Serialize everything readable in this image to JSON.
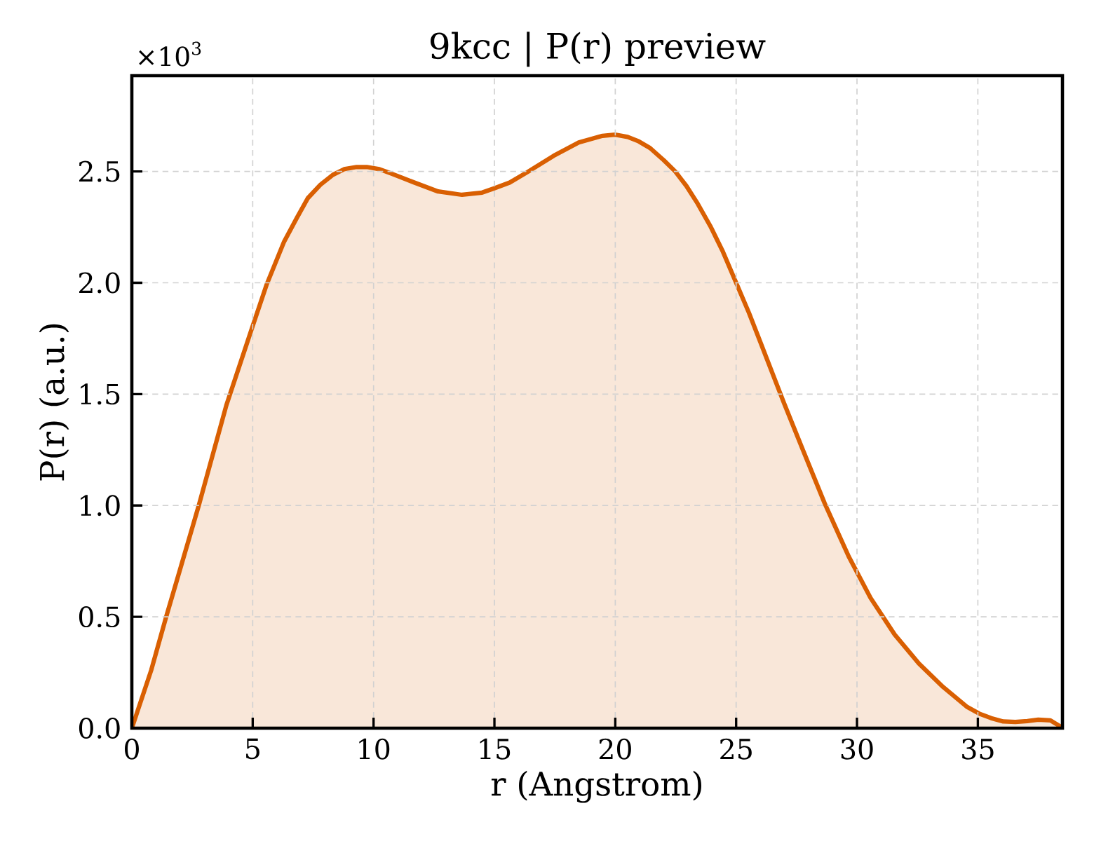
{
  "chart_data": {
    "type": "area",
    "title": "9kcc | P(r) preview",
    "xlabel": "r (Angstrom)",
    "ylabel": "P(r) (a.u.)",
    "annotations": [
      "×10$^{3}$"
    ],
    "x": [
      0,
      0.8,
      1.42,
      2.77,
      3.91,
      4.95,
      5.57,
      6.3,
      6.82,
      7.28,
      7.8,
      8.32,
      8.78,
      9.3,
      9.72,
      10.24,
      10.75,
      11.69,
      12.67,
      13.66,
      14.49,
      15.01,
      15.63,
      16.41,
      17.45,
      18.49,
      19.47,
      19.99,
      20.51,
      20.97,
      21.44,
      22.01,
      22.48,
      22.94,
      23.41,
      23.93,
      24.45,
      24.96,
      25.53,
      26.05,
      26.98,
      27.76,
      28.66,
      29.66,
      30.56,
      31.56,
      32.56,
      33.56,
      34.56,
      35.06,
      35.55,
      36.05,
      36.55,
      37.05,
      37.5,
      38.0,
      38.45
    ],
    "values": [
      0,
      0.26,
      0.5,
      1.0,
      1.45,
      1.79,
      1.99,
      2.185,
      2.29,
      2.38,
      2.44,
      2.485,
      2.51,
      2.52,
      2.52,
      2.51,
      2.49,
      2.45,
      2.41,
      2.395,
      2.405,
      2.425,
      2.45,
      2.5,
      2.57,
      2.63,
      2.66,
      2.665,
      2.655,
      2.635,
      2.605,
      2.55,
      2.5,
      2.435,
      2.355,
      2.255,
      2.14,
      2.01,
      1.865,
      1.72,
      1.46,
      1.25,
      1.01,
      0.77,
      0.585,
      0.42,
      0.29,
      0.185,
      0.095,
      0.065,
      0.045,
      0.03,
      0.028,
      0.032,
      0.038,
      0.035,
      0.005
    ],
    "color": "#d95f02",
    "xlim": [
      0,
      38.5
    ],
    "xticks": [
      0,
      5,
      10,
      15,
      20,
      25,
      30,
      35
    ],
    "ylim": [
      0,
      2.93
    ],
    "yticks": [
      {
        "value": 0,
        "label": "0.0"
      },
      {
        "value": 0.5,
        "label": "0.5"
      },
      {
        "value": 1,
        "label": "1.0"
      },
      {
        "value": 1.5,
        "label": "1.5"
      },
      {
        "value": 2,
        "label": "2.0"
      },
      {
        "value": 2.5,
        "label": "2.5"
      }
    ],
    "grid": true
  }
}
